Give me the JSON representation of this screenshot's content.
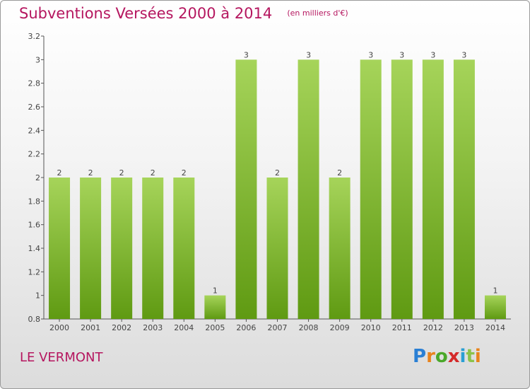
{
  "header": {
    "title": "Subventions Versées 2000 à 2014",
    "subtitle": "(en milliers d'€)"
  },
  "footer": {
    "location": "LE VERMONT",
    "brand": "Proxiti"
  },
  "colors": {
    "accent": "#b5165f",
    "bar_top": "#a6d45a",
    "bar_bottom": "#5f9a12",
    "axis": "#555555"
  },
  "chart_data": {
    "type": "bar",
    "categories": [
      "2000",
      "2001",
      "2002",
      "2003",
      "2004",
      "2005",
      "2006",
      "2007",
      "2008",
      "2009",
      "2010",
      "2011",
      "2012",
      "2013",
      "2014"
    ],
    "values": [
      2,
      2,
      2,
      2,
      2,
      1,
      3,
      2,
      3,
      2,
      3,
      3,
      3,
      3,
      1
    ],
    "data_labels": [
      "2",
      "2",
      "2",
      "2",
      "2",
      "1",
      "3",
      "2",
      "3",
      "2",
      "3",
      "3",
      "3",
      "3",
      "1"
    ],
    "y_ticks": [
      0.8,
      1,
      1.2,
      1.4,
      1.6,
      1.8,
      2,
      2.2,
      2.4,
      2.6,
      2.8,
      3,
      3.2
    ],
    "y_tick_labels": [
      "0.8",
      "1",
      "1.2",
      "1.4",
      "1.6",
      "1.8",
      "2",
      "2.2",
      "2.4",
      "2.6",
      "2.8",
      "3",
      "3.2"
    ],
    "ylim": [
      0.8,
      3.2
    ],
    "title": "Subventions Versées 2000 à 2014",
    "xlabel": "",
    "ylabel": "",
    "grid": false,
    "legend": "none"
  }
}
